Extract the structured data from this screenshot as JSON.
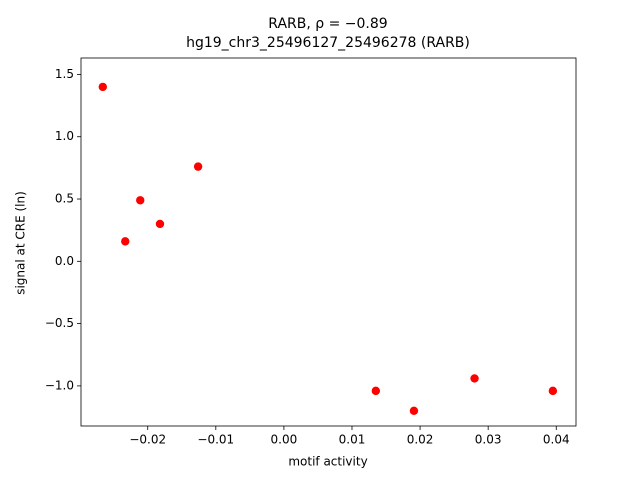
{
  "chart_data": {
    "type": "scatter",
    "title": "RARB, ρ = −0.89",
    "subtitle": "hg19_chr3_25496127_25496278 (RARB)",
    "x_label": "motif activity",
    "y_label": "signal at CRE (ln)",
    "color": "#ff0000",
    "x": [
      -0.0266,
      -0.0233,
      -0.0211,
      -0.0182,
      -0.0126,
      0.0135,
      0.0191,
      0.028,
      0.0395
    ],
    "values": [
      1.4,
      0.16,
      0.49,
      0.3,
      0.76,
      -1.04,
      -1.2,
      -0.94,
      -1.04
    ],
    "xlim": [
      -0.0298,
      0.0429
    ],
    "ylim": [
      -1.322,
      1.632
    ],
    "xticks": [
      {
        "value": -0.02,
        "label": "−0.02"
      },
      {
        "value": -0.01,
        "label": "−0.01"
      },
      {
        "value": 0,
        "label": "0.00"
      },
      0.01,
      0.02,
      0.03,
      0.04
    ],
    "yticks": [
      {
        "value": -1,
        "label": "−1.0"
      },
      {
        "value": -0.5,
        "label": "−0.5"
      },
      {
        "value": 0,
        "label": "0.0"
      },
      0.5,
      {
        "value": 1,
        "label": "1.0"
      },
      1.5
    ]
  }
}
